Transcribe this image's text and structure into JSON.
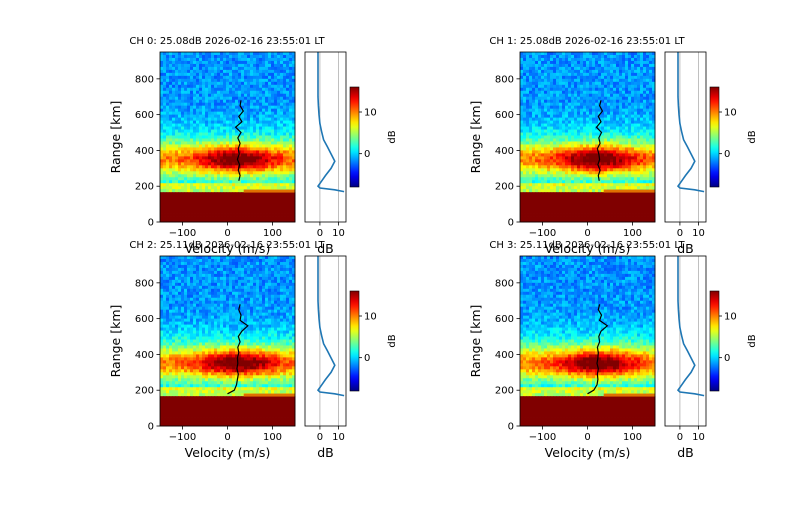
{
  "figure": {
    "colors": {
      "axis": "#000000",
      "grid": "#b0b0b0",
      "profile": "#1f77b4",
      "trace": "#000000",
      "clutter": "#800000"
    },
    "colormap": "jet"
  },
  "chart_data": [
    {
      "type": "heatmap",
      "title": "CH 0: 25.08dB 2026-02-16 23:55:01 LT",
      "xlabel": "Velocity (m/s)",
      "ylabel": "Range [km]",
      "xlim": [
        -150,
        150
      ],
      "ylim": [
        0,
        950
      ],
      "xticks": [
        -100,
        0,
        100
      ],
      "yticks": [
        0,
        200,
        400,
        600,
        800
      ],
      "echo_center_km": 350,
      "clutter_top_km": 170,
      "doppler_trace": {
        "range_km": [
          230,
          260,
          290,
          320,
          350,
          380,
          410,
          440,
          470,
          500,
          530,
          560,
          590,
          620,
          650,
          680
        ],
        "velocity_ms": [
          25,
          28,
          24,
          27,
          22,
          26,
          24,
          28,
          23,
          30,
          18,
          32,
          25,
          35,
          28,
          30
        ]
      },
      "profile": {
        "xlabel": "dB",
        "xticks": [
          0,
          10
        ],
        "xlim": [
          -8,
          14
        ],
        "range_km": [
          170,
          180,
          190,
          200,
          230,
          260,
          300,
          340,
          380,
          420,
          460,
          500,
          550,
          600,
          650,
          700,
          800,
          950
        ],
        "db": [
          13,
          8,
          0,
          -1,
          1,
          3,
          6,
          8,
          6,
          4,
          2,
          1,
          0,
          -0.5,
          -0.8,
          -1,
          -1,
          -1
        ]
      },
      "colorbar": {
        "label": "dB",
        "range": [
          -8,
          16
        ],
        "ticks": [
          0,
          10
        ]
      }
    },
    {
      "type": "heatmap",
      "title": "CH 1: 25.08dB 2026-02-16 23:55:01 LT",
      "xlabel": "Velocity (m/s)",
      "ylabel": "Range [km]",
      "xlim": [
        -150,
        150
      ],
      "ylim": [
        0,
        950
      ],
      "xticks": [
        -100,
        0,
        100
      ],
      "yticks": [
        0,
        200,
        400,
        600,
        800
      ],
      "echo_center_km": 350,
      "clutter_top_km": 170,
      "doppler_trace": {
        "range_km": [
          230,
          260,
          290,
          320,
          350,
          380,
          410,
          440,
          470,
          500,
          530,
          560,
          590,
          620,
          650,
          680
        ],
        "velocity_ms": [
          26,
          24,
          28,
          23,
          27,
          25,
          22,
          28,
          25,
          31,
          20,
          30,
          24,
          33,
          27,
          30
        ]
      },
      "profile": {
        "xlabel": "dB",
        "xticks": [
          0,
          10
        ],
        "xlim": [
          -8,
          14
        ],
        "range_km": [
          170,
          180,
          190,
          200,
          230,
          260,
          300,
          340,
          380,
          420,
          460,
          500,
          550,
          600,
          650,
          700,
          800,
          950
        ],
        "db": [
          13,
          8,
          0,
          -1,
          1,
          3,
          6,
          8,
          6,
          4,
          2,
          1,
          0,
          -0.5,
          -0.8,
          -1,
          -1,
          -1
        ]
      },
      "colorbar": {
        "label": "dB",
        "range": [
          -8,
          16
        ],
        "ticks": [
          0,
          10
        ]
      }
    },
    {
      "type": "heatmap",
      "title": "CH 2: 25.11dB 2026-02-16 23:55:01 LT",
      "xlabel": "Velocity (m/s)",
      "ylabel": "Range [km]",
      "xlim": [
        -150,
        150
      ],
      "ylim": [
        0,
        950
      ],
      "xticks": [
        -100,
        0,
        100
      ],
      "yticks": [
        0,
        200,
        400,
        600,
        800
      ],
      "echo_center_km": 350,
      "clutter_top_km": 170,
      "doppler_trace": {
        "range_km": [
          180,
          200,
          230,
          260,
          290,
          320,
          350,
          380,
          410,
          440,
          470,
          500,
          530,
          560,
          590,
          620,
          650,
          680
        ],
        "velocity_ms": [
          0,
          15,
          20,
          22,
          24,
          21,
          23,
          22,
          25,
          23,
          28,
          24,
          32,
          45,
          28,
          30,
          25,
          28
        ]
      },
      "profile": {
        "xlabel": "dB",
        "xticks": [
          0,
          10
        ],
        "xlim": [
          -8,
          14
        ],
        "range_km": [
          170,
          180,
          190,
          200,
          230,
          260,
          300,
          340,
          380,
          420,
          460,
          500,
          550,
          600,
          650,
          700,
          800,
          950
        ],
        "db": [
          13,
          8,
          0,
          -1,
          1,
          3,
          6,
          8,
          6,
          4,
          2,
          1,
          0,
          -0.5,
          -0.8,
          -1,
          -1,
          -1
        ]
      },
      "colorbar": {
        "label": "dB",
        "range": [
          -8,
          16
        ],
        "ticks": [
          0,
          10
        ]
      }
    },
    {
      "type": "heatmap",
      "title": "CH 3: 25.11dB 2026-02-16 23:55:01 LT",
      "xlabel": "Velocity (m/s)",
      "ylabel": "Range [km]",
      "xlim": [
        -150,
        150
      ],
      "ylim": [
        0,
        950
      ],
      "xticks": [
        -100,
        0,
        100
      ],
      "yticks": [
        0,
        200,
        400,
        600,
        800
      ],
      "echo_center_km": 350,
      "clutter_top_km": 170,
      "doppler_trace": {
        "range_km": [
          180,
          200,
          230,
          260,
          290,
          320,
          350,
          380,
          410,
          440,
          470,
          500,
          530,
          560,
          590,
          620,
          650,
          680
        ],
        "velocity_ms": [
          0,
          14,
          21,
          23,
          22,
          24,
          21,
          23,
          24,
          22,
          27,
          25,
          30,
          44,
          27,
          31,
          24,
          27
        ]
      },
      "profile": {
        "xlabel": "dB",
        "xticks": [
          0,
          10
        ],
        "xlim": [
          -8,
          14
        ],
        "range_km": [
          170,
          180,
          190,
          200,
          230,
          260,
          300,
          340,
          380,
          420,
          460,
          500,
          550,
          600,
          650,
          700,
          800,
          950
        ],
        "db": [
          13,
          8,
          0,
          -1,
          1,
          3,
          6,
          8,
          6,
          4,
          2,
          1,
          0,
          -0.5,
          -0.8,
          -1,
          -1,
          -1
        ]
      },
      "colorbar": {
        "label": "dB",
        "range": [
          -8,
          16
        ],
        "ticks": [
          0,
          10
        ]
      }
    }
  ]
}
